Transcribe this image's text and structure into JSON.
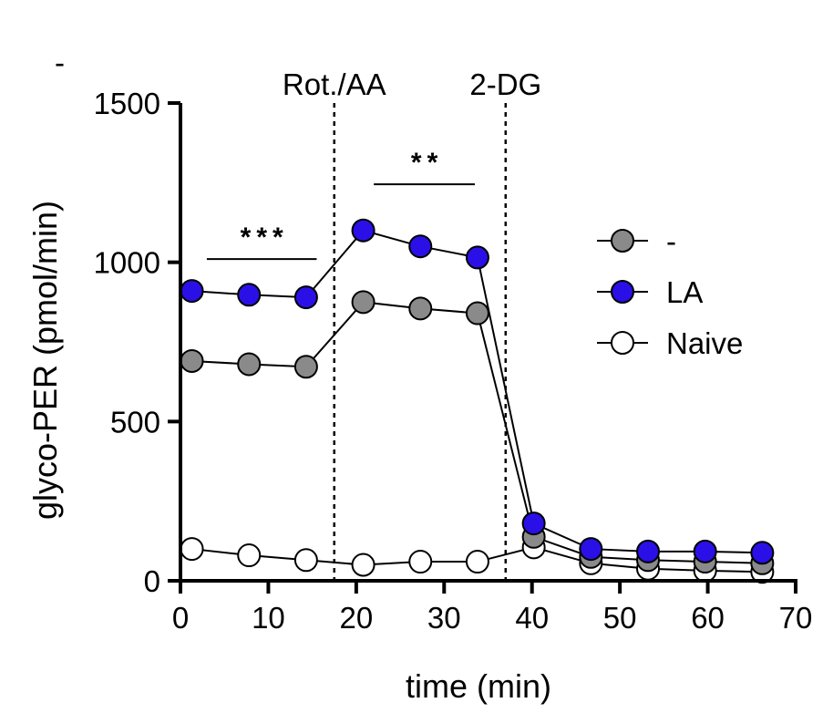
{
  "chart_data": {
    "type": "line",
    "title": "",
    "corner_mark": "-",
    "xlabel": "time (min)",
    "ylabel": "glyco-PER (pmol/min)",
    "xlim": [
      0,
      70
    ],
    "ylim": [
      0,
      1500
    ],
    "xticks": [
      0,
      10,
      20,
      30,
      40,
      50,
      60,
      70
    ],
    "yticks": [
      0,
      500,
      1000,
      1500
    ],
    "x": [
      1.3,
      7.8,
      14.3,
      20.8,
      27.3,
      33.8,
      40.2,
      46.7,
      53.2,
      59.7,
      66.2
    ],
    "series": [
      {
        "name": "Naive",
        "fill": "#ffffff",
        "values": [
          100,
          80,
          65,
          50,
          60,
          60,
          105,
          55,
          38,
          32,
          28
        ]
      },
      {
        "name": "-",
        "fill": "#8a8a8a",
        "values": [
          690,
          680,
          672,
          875,
          855,
          840,
          138,
          75,
          65,
          60,
          55
        ]
      },
      {
        "name": "LA",
        "fill": "#2a10e6",
        "values": [
          910,
          898,
          890,
          1100,
          1050,
          1015,
          180,
          100,
          92,
          92,
          88
        ]
      }
    ],
    "legend_order": [
      "-",
      "LA",
      "Naive"
    ],
    "legend_position": "right",
    "vlines": [
      {
        "x": 17.5,
        "label": "Rot./AA"
      },
      {
        "x": 37.0,
        "label": "2-DG"
      }
    ],
    "significance": [
      {
        "x_start": 3.0,
        "x_end": 15.5,
        "y": 1010,
        "label": "***"
      },
      {
        "x_start": 22.0,
        "x_end": 33.5,
        "y": 1245,
        "label": "**"
      }
    ]
  }
}
